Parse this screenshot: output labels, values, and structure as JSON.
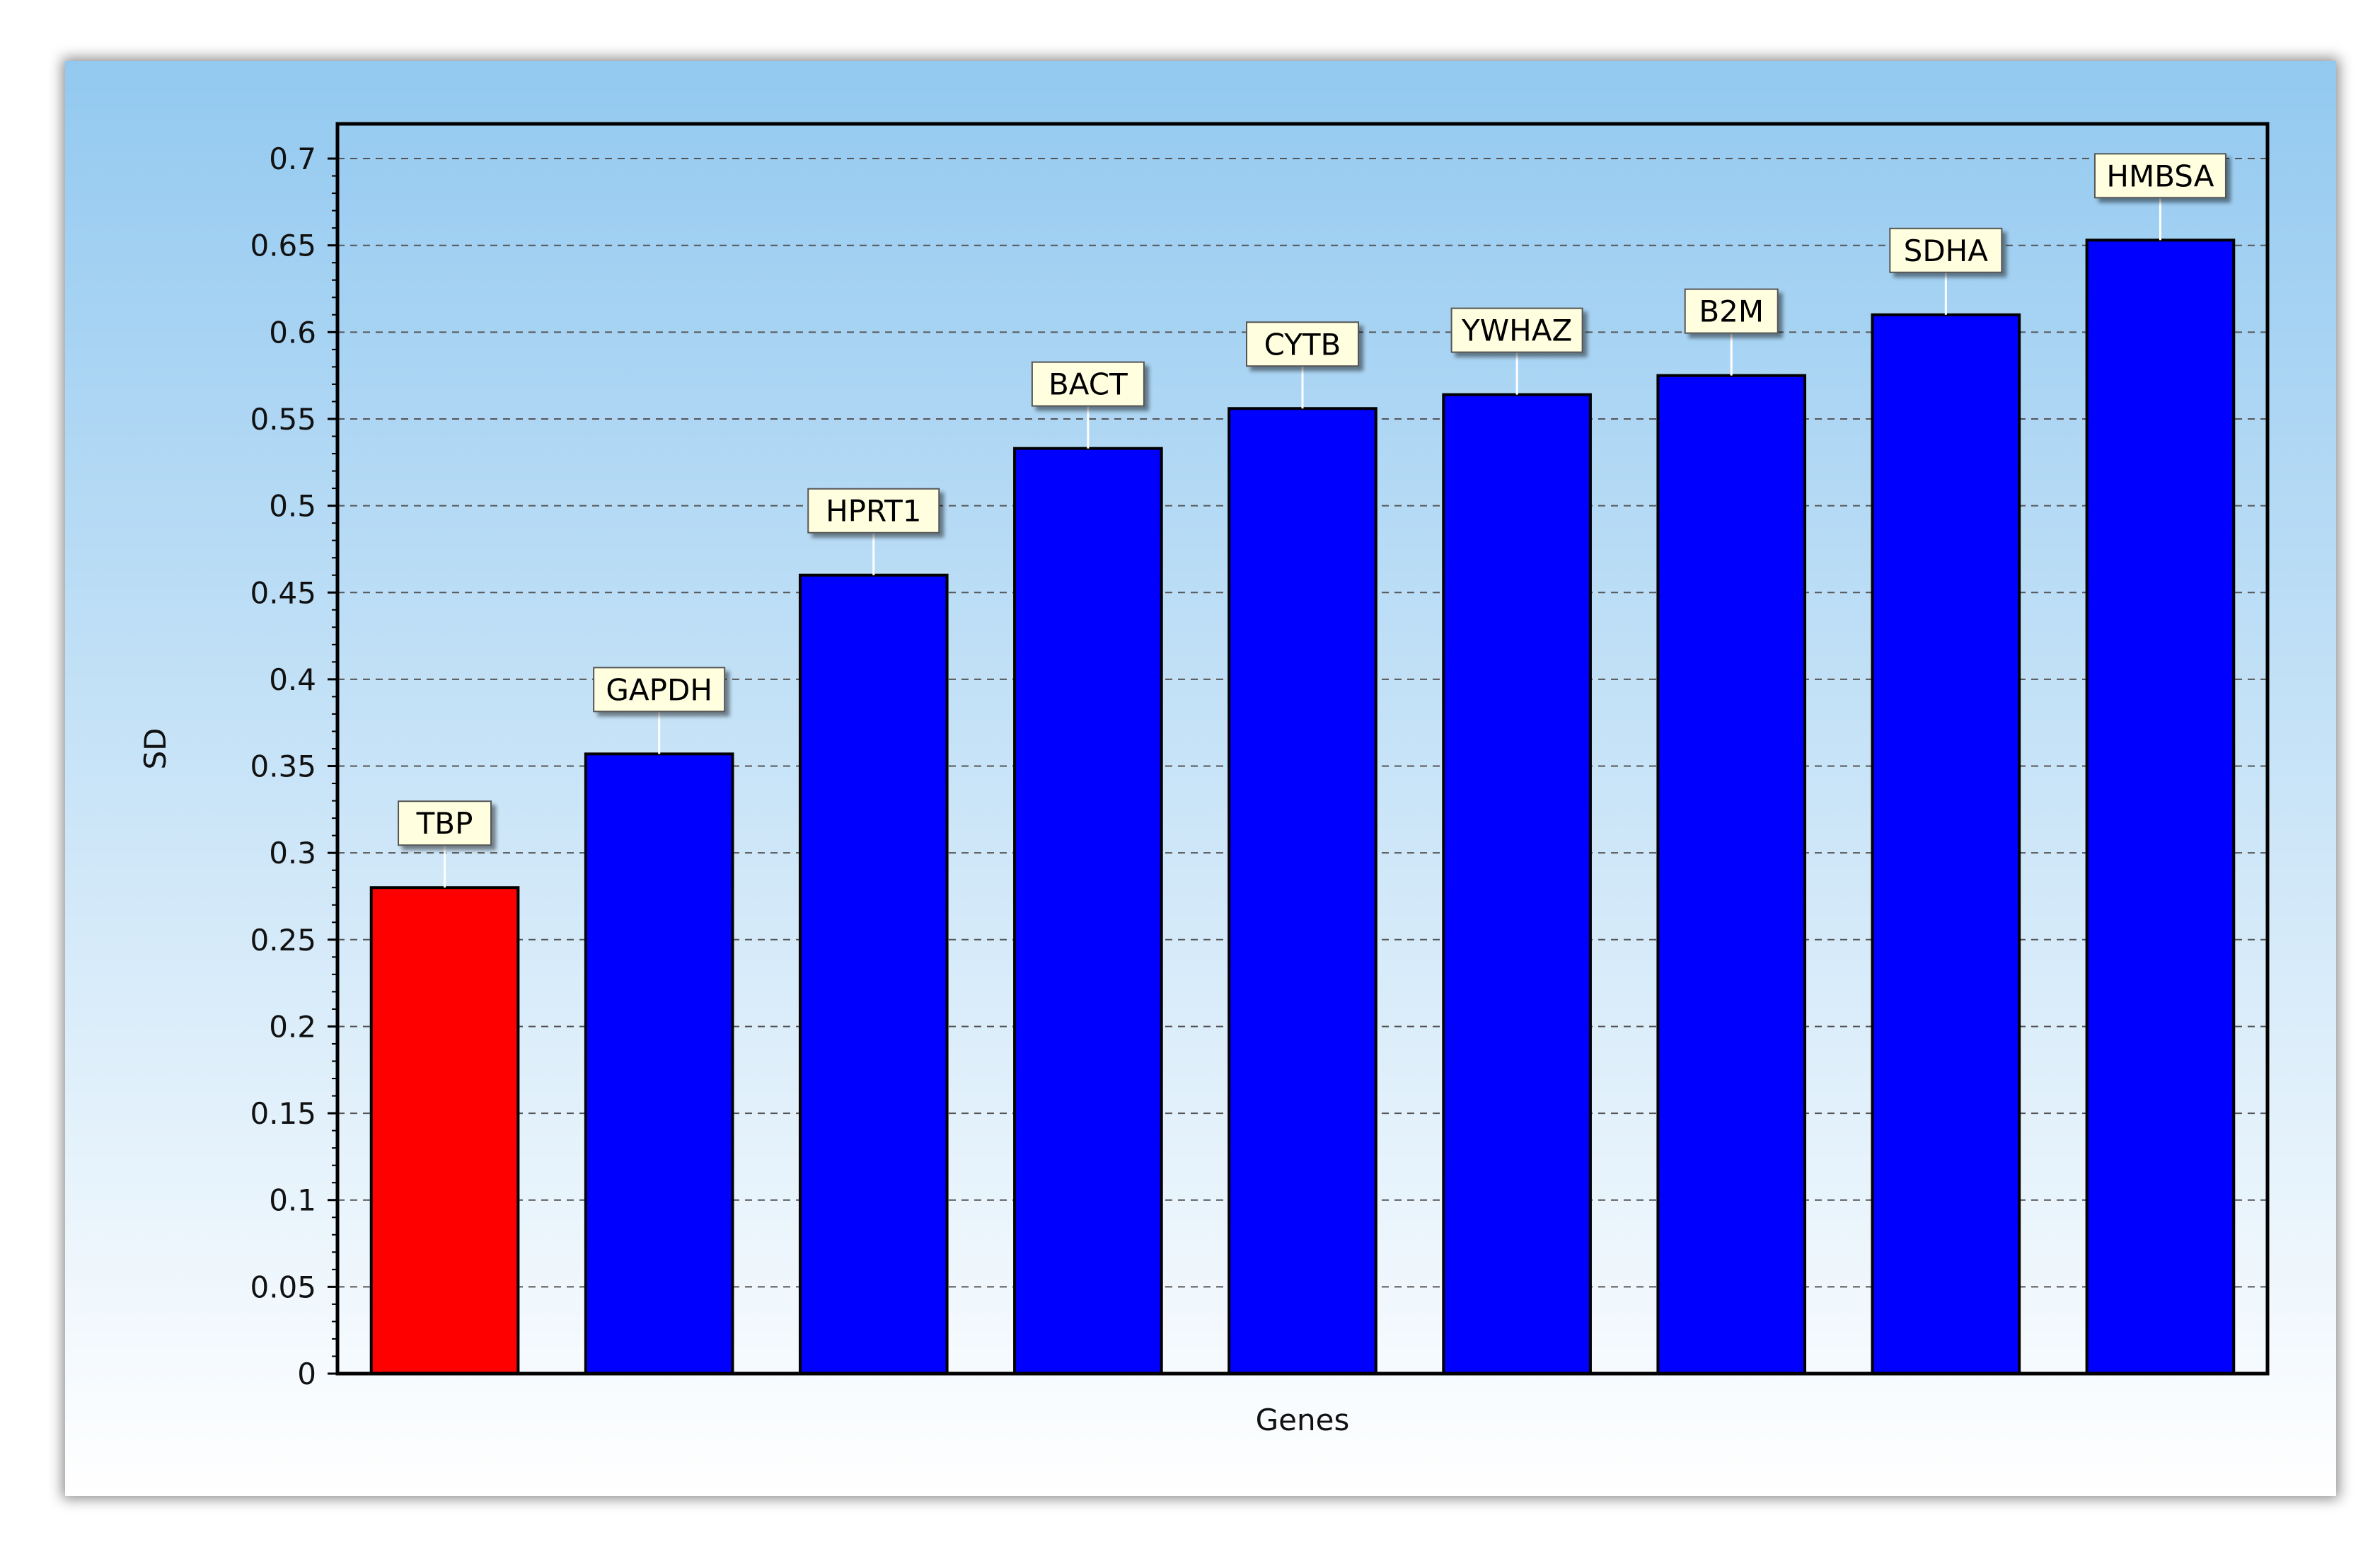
{
  "chart_data": {
    "type": "bar",
    "categories": [
      "TBP",
      "GAPDH",
      "HPRT1",
      "BACT",
      "CYTB",
      "YWHAZ",
      "B2M",
      "SDHA",
      "HMBSA"
    ],
    "values": [
      0.28,
      0.357,
      0.46,
      0.533,
      0.556,
      0.564,
      0.575,
      0.61,
      0.653
    ],
    "data_labels": [
      "TBP",
      "GAPDH",
      "HPRT1",
      "BACT",
      "CYTB",
      "YWHAZ",
      "B2M",
      "SDHA",
      "HMBSA"
    ],
    "bar_colors": [
      "#ff0000",
      "#0000ff",
      "#0000ff",
      "#0000ff",
      "#0000ff",
      "#0000ff",
      "#0000ff",
      "#0000ff",
      "#0000ff"
    ],
    "xlabel": "Genes",
    "ylabel": "SD",
    "ylim": [
      0,
      0.72
    ],
    "yticks": [
      0,
      0.05,
      0.1,
      0.15,
      0.2,
      0.25,
      0.3,
      0.35,
      0.4,
      0.45,
      0.5,
      0.55,
      0.6,
      0.65,
      0.7
    ],
    "ytick_labels": [
      "0",
      "0.05",
      "0.1",
      "0.15",
      "0.2",
      "0.25",
      "0.3",
      "0.35",
      "0.4",
      "0.45",
      "0.5",
      "0.55",
      "0.6",
      "0.65",
      "0.7"
    ],
    "grid": true,
    "legend": "none",
    "background_gradient": [
      "#93c9f0",
      "#ffffff"
    ]
  }
}
